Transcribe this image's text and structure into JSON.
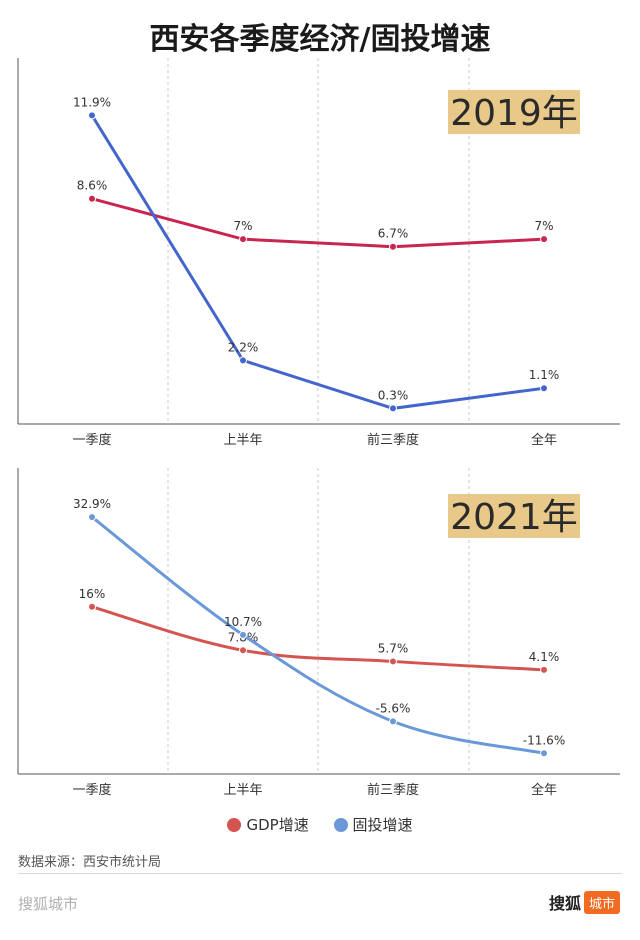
{
  "title": "西安各季度经济/固投增速",
  "colors": {
    "gdp_2019": "#c9264f",
    "inv_2019": "#4466cc",
    "gdp_2021": "#d45550",
    "inv_2021": "#6a98d8",
    "year_badge_bg": "#e9c98a"
  },
  "chart_data": [
    {
      "type": "line",
      "year_label": "2019年",
      "categories": [
        "一季度",
        "上半年",
        "前三季度",
        "全年"
      ],
      "series": [
        {
          "name": "GDP增速",
          "values": [
            8.6,
            7,
            6.7,
            7
          ],
          "labels": [
            "8.6%",
            "7%",
            "6.7%",
            "7%"
          ]
        },
        {
          "name": "固投增速",
          "values": [
            11.9,
            2.2,
            0.3,
            1.1
          ],
          "labels": [
            "11.9%",
            "2.2%",
            "0.3%",
            "1.1%"
          ]
        }
      ],
      "ylim": [
        0,
        13.3
      ],
      "grid": "vertical dashed"
    },
    {
      "type": "line",
      "year_label": "2021年",
      "categories": [
        "一季度",
        "上半年",
        "前三季度",
        "全年"
      ],
      "series": [
        {
          "name": "GDP增速",
          "values": [
            16,
            7.8,
            5.7,
            4.1
          ],
          "labels": [
            "16%",
            "7.8%",
            "5.7%",
            "4.1%"
          ]
        },
        {
          "name": "固投增速",
          "values": [
            32.9,
            10.7,
            -5.6,
            -11.6
          ],
          "labels": [
            "32.9%",
            "10.7%",
            "-5.6%",
            "-11.6%"
          ]
        }
      ],
      "ylim": [
        -14,
        38
      ],
      "grid": "vertical dashed",
      "smooth": true
    }
  ],
  "legend": [
    {
      "label": "GDP增速",
      "color": "#d45550"
    },
    {
      "label": "固投增速",
      "color": "#6a98d8"
    }
  ],
  "source": "数据来源：西安市统计局",
  "brand_left": "搜狐城市",
  "brand_right": "搜狐",
  "brand_tag": "城市"
}
